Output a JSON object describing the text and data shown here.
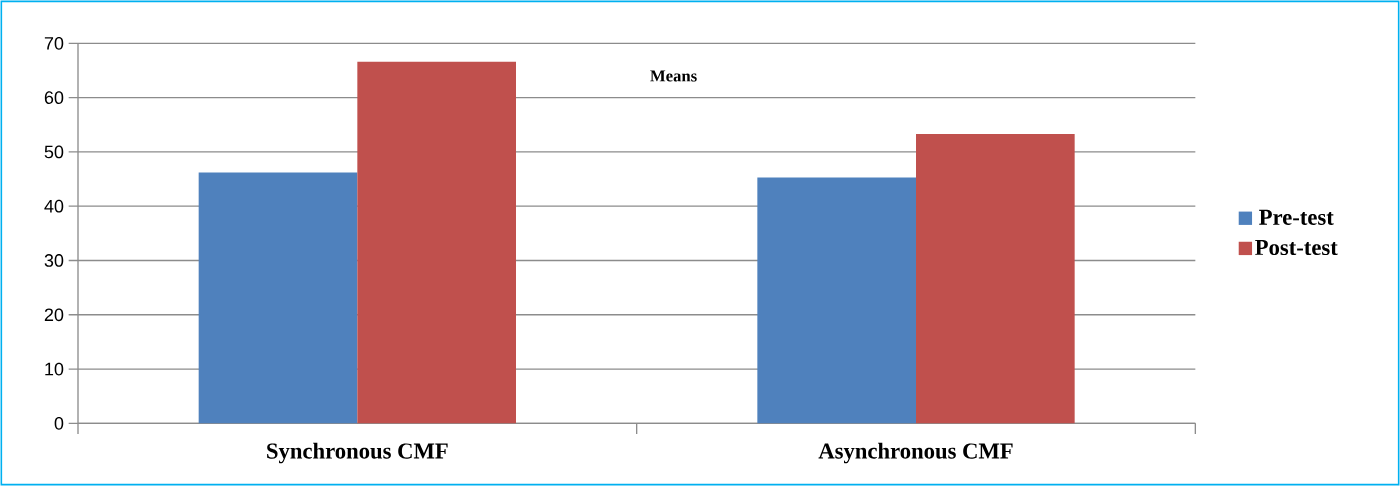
{
  "chart_data": {
    "type": "bar",
    "title": "Means",
    "categories": [
      "Synchronous CMF",
      "Asynchronous CMF"
    ],
    "series": [
      {
        "name": "Pre-test",
        "color": "#4f81bd",
        "values": [
          46.2,
          45.3
        ]
      },
      {
        "name": "Post-test",
        "color": "#c0504d",
        "values": [
          66.6,
          53.3
        ]
      }
    ],
    "ylim": [
      0,
      70
    ],
    "yticks": [
      0,
      10,
      20,
      30,
      40,
      50,
      60,
      70
    ],
    "grid": "y",
    "legend": "right"
  }
}
